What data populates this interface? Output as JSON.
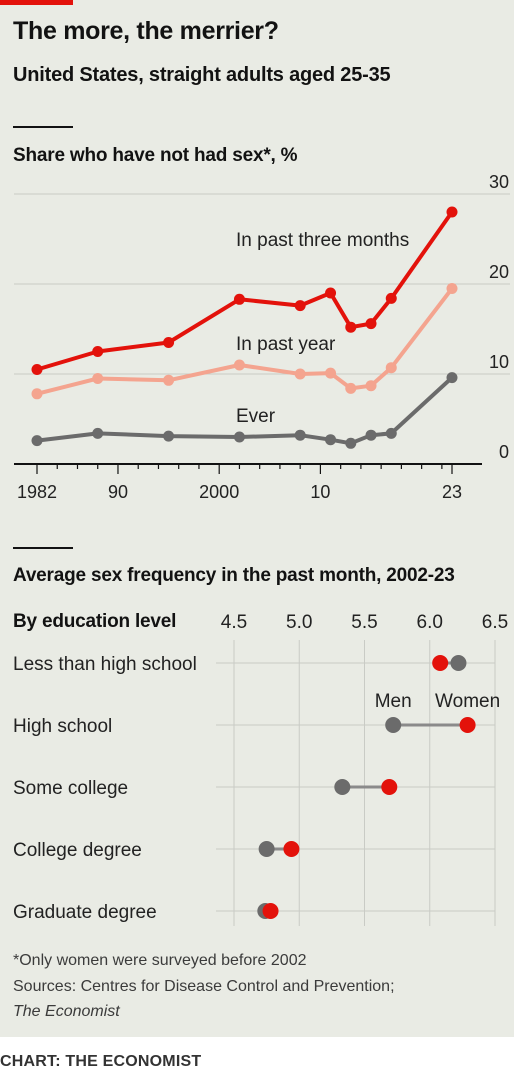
{
  "title": "The more, the merrier?",
  "subtitle": "United States, straight adults aged 25-35",
  "colors": {
    "accent": "#e3120b",
    "red": "#e3120b",
    "pink": "#f4a48f",
    "grey": "#6b6b6b",
    "connector": "#8a8a8a"
  },
  "chart_data": [
    {
      "type": "line",
      "title": "Share who have not had sex*, %",
      "y_ticks": [
        "30",
        "20",
        "10",
        "0"
      ],
      "ylim": [
        0,
        30
      ],
      "x_ticks": [
        "1982",
        "90",
        "2000",
        "10",
        "23"
      ],
      "x_tick_values": [
        1982,
        1990,
        2000,
        2010,
        2023
      ],
      "xlim": [
        1982,
        2023
      ],
      "grid": "horizontal",
      "series": [
        {
          "name": "In past three months",
          "x": [
            1982,
            1988,
            1995,
            2002,
            2008,
            2011,
            2013,
            2015,
            2017,
            2023
          ],
          "y": [
            10.5,
            12.5,
            13.5,
            18.3,
            17.6,
            19,
            15.2,
            15.6,
            18.4,
            28
          ]
        },
        {
          "name": "In past year",
          "x": [
            1982,
            1988,
            1995,
            2002,
            2008,
            2011,
            2013,
            2015,
            2017,
            2023
          ],
          "y": [
            7.8,
            9.5,
            9.3,
            11,
            10,
            10.1,
            8.4,
            8.7,
            10.7,
            19.5
          ]
        },
        {
          "name": "Ever",
          "x": [
            1982,
            1988,
            1995,
            2002,
            2008,
            2011,
            2013,
            2015,
            2017,
            2023
          ],
          "y": [
            2.6,
            3.4,
            3.1,
            3,
            3.2,
            2.7,
            2.3,
            3.2,
            3.4,
            9.6
          ]
        }
      ]
    },
    {
      "type": "dot",
      "title": "Average sex frequency in the past month, 2002-23",
      "category_header": "By education level",
      "x_ticks": [
        "4.5",
        "5.0",
        "5.5",
        "6.0",
        "6.5"
      ],
      "xlim": [
        4.5,
        6.5
      ],
      "categories": [
        "Less than high school",
        "High school",
        "Some college",
        "College degree",
        "Graduate degree"
      ],
      "series": [
        {
          "name": "Men",
          "values": [
            6.22,
            5.72,
            5.33,
            4.75,
            4.74
          ]
        },
        {
          "name": "Women",
          "values": [
            6.08,
            6.29,
            5.69,
            4.94,
            4.78
          ]
        }
      ]
    }
  ],
  "footnote": "*Only women were surveyed before 2002",
  "sources": "Sources: Centres for Disease Control and Prevention;",
  "source_org": "The Economist",
  "credit": "CHART: THE ECONOMIST"
}
